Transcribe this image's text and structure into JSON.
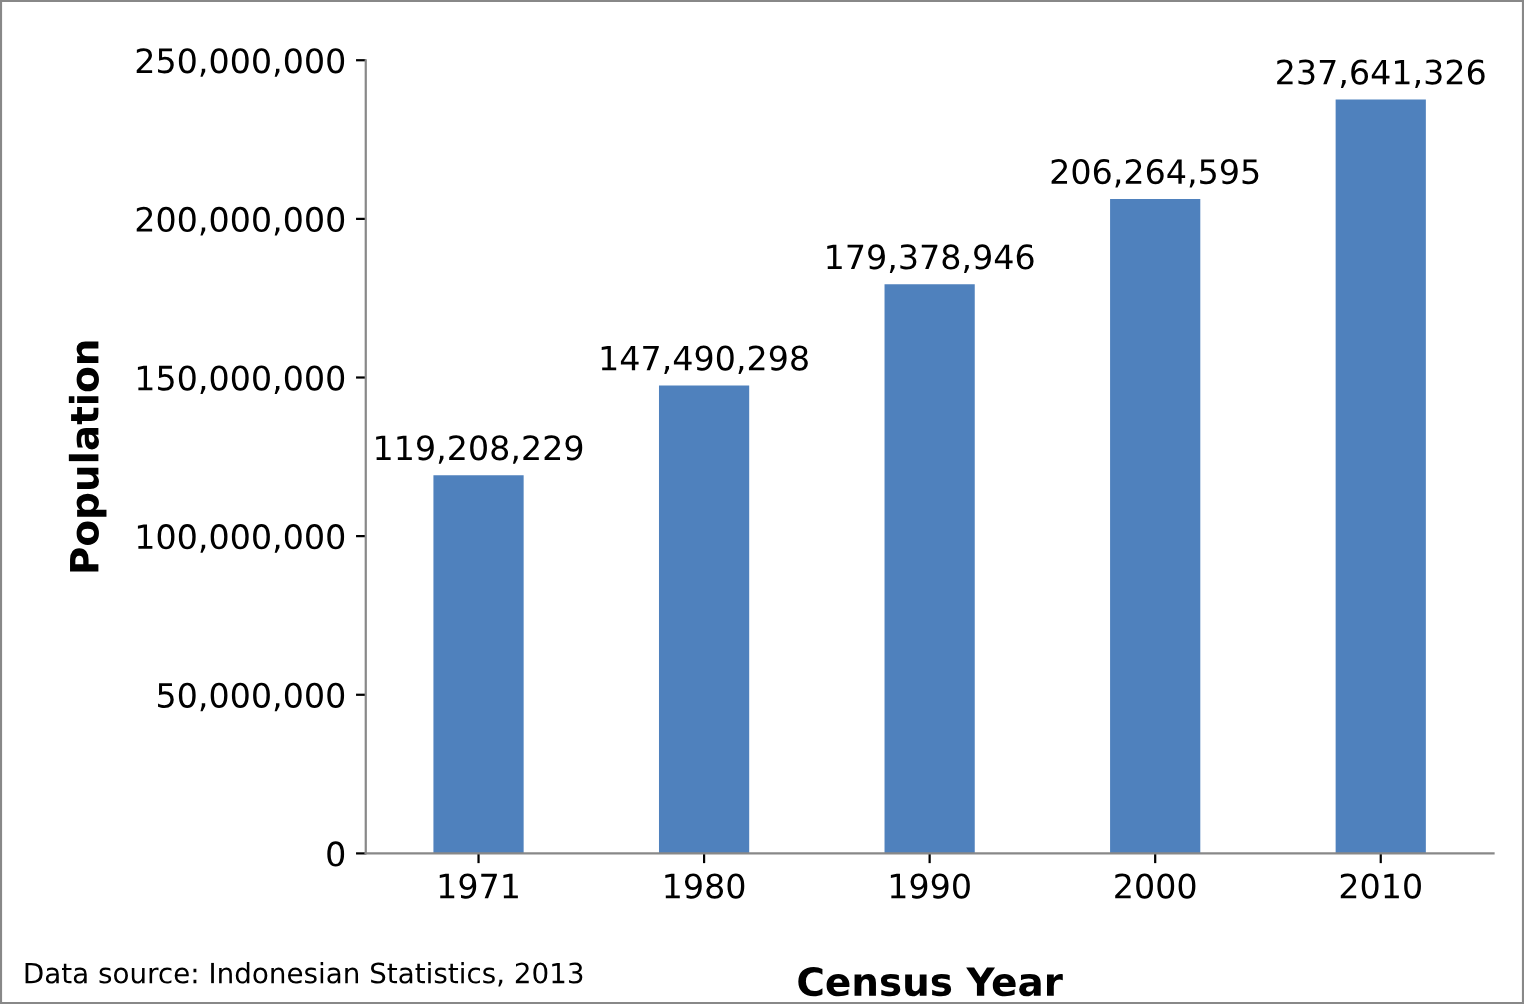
{
  "chart_data": {
    "type": "bar",
    "xlabel": "Census Year",
    "ylabel": "Population",
    "categories": [
      "1971",
      "1980",
      "1990",
      "2000",
      "2010"
    ],
    "values": [
      119208229,
      147490298,
      179378946,
      206264595,
      237641326
    ],
    "color": "#4f81bd",
    "ylim": [
      0,
      250000000
    ],
    "yticks": [
      0,
      {
        "value": 50000000,
        "label": "50,000,000"
      },
      {
        "value": 100000000,
        "label": "100,000,000"
      },
      {
        "value": 150000000,
        "label": "150,000,000"
      },
      {
        "value": 200000000,
        "label": "200,000,000"
      },
      {
        "value": 250000000,
        "label": "250,000,000"
      }
    ],
    "value_labels": [
      "119,208,229",
      "147,490,298",
      "179,378,946",
      "206,264,595",
      "237,641,326"
    ],
    "grid": false,
    "legend": false,
    "annotations": [
      "Data source: Indonesian Statistics, 2013"
    ]
  }
}
